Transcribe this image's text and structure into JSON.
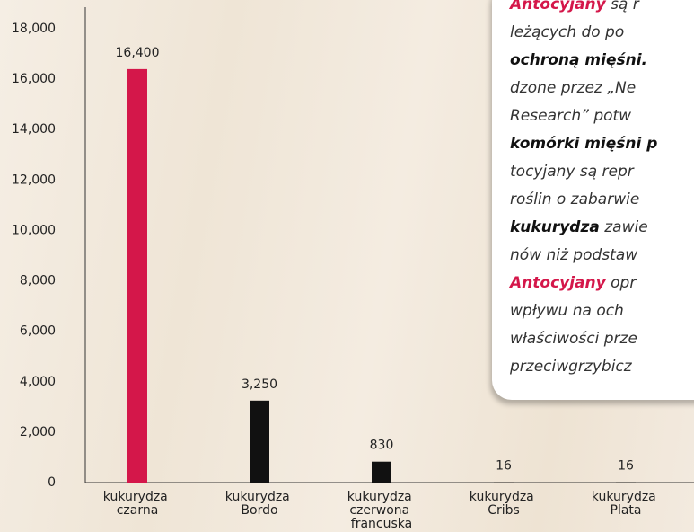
{
  "chart_data": {
    "type": "bar",
    "categories": [
      "kukurydza czarna",
      "kukurydza Bordo",
      "kukurydza czerwona francuska",
      "kukurydza Cribs",
      "kukurydza Plata"
    ],
    "values": [
      16400,
      3250,
      830,
      16,
      16
    ],
    "value_labels": [
      "16,400",
      "3,250",
      "830",
      "16",
      "16"
    ],
    "colors": [
      "#d4174a",
      "#111111",
      "#111111",
      "#111111",
      "#111111"
    ],
    "ylim": [
      0,
      18000
    ],
    "yticks": [
      0,
      {
        "value": 2000,
        "label": "2,000"
      },
      {
        "value": 4000,
        "label": "4,000"
      },
      {
        "value": 6000,
        "label": "6,000"
      },
      {
        "value": 8000,
        "label": "8,000"
      },
      {
        "value": 10000,
        "label": "10,000"
      },
      {
        "value": 12000,
        "label": "12,000"
      },
      {
        "value": 14000,
        "label": "14,000"
      },
      {
        "value": 16000,
        "label": "16,000"
      },
      {
        "value": 18000,
        "label": "18,000"
      }
    ]
  },
  "text_box": {
    "lines": [
      [
        "Antocyjany",
        " są r"
      ],
      [
        "leżących do po"
      ],
      [
        "ochroną mięśni."
      ],
      [
        "dzone przez „Ne"
      ],
      [
        "Research” potw"
      ],
      [
        "komórki mięśni p"
      ],
      [
        "tocyjany są repr"
      ],
      [
        "roślin o zabarwie"
      ],
      [
        "kukurydza",
        " zawie"
      ],
      [
        "nów niż podstaw"
      ],
      [
        "Antocyjany",
        " opr"
      ],
      [
        "wpływu na och"
      ],
      [
        "właściwości prze"
      ],
      [
        "przeciwgrzybicz"
      ]
    ]
  }
}
